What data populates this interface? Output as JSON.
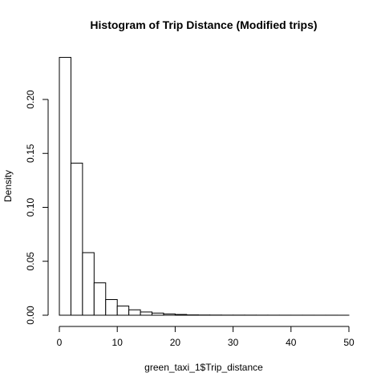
{
  "chart_data": {
    "type": "bar",
    "title": "Histogram of Trip Distance (Modified trips)",
    "xlabel": "green_taxi_1$Trip_distance",
    "ylabel": "Density",
    "xlim": [
      0,
      50
    ],
    "ylim": [
      0,
      0.24
    ],
    "bin_width": 2,
    "bins": [
      {
        "x0": 0,
        "x1": 2,
        "density": 0.239
      },
      {
        "x0": 2,
        "x1": 4,
        "density": 0.141
      },
      {
        "x0": 4,
        "x1": 6,
        "density": 0.058
      },
      {
        "x0": 6,
        "x1": 8,
        "density": 0.03
      },
      {
        "x0": 8,
        "x1": 10,
        "density": 0.0145
      },
      {
        "x0": 10,
        "x1": 12,
        "density": 0.0085
      },
      {
        "x0": 12,
        "x1": 14,
        "density": 0.005
      },
      {
        "x0": 14,
        "x1": 16,
        "density": 0.003
      },
      {
        "x0": 16,
        "x1": 18,
        "density": 0.002
      },
      {
        "x0": 18,
        "x1": 20,
        "density": 0.0012
      },
      {
        "x0": 20,
        "x1": 22,
        "density": 0.0007
      },
      {
        "x0": 22,
        "x1": 24,
        "density": 0.0003
      },
      {
        "x0": 24,
        "x1": 26,
        "density": 0.0002
      },
      {
        "x0": 26,
        "x1": 28,
        "density": 0.00015
      },
      {
        "x0": 28,
        "x1": 30,
        "density": 0.0001
      },
      {
        "x0": 30,
        "x1": 32,
        "density": 0.0001
      },
      {
        "x0": 32,
        "x1": 34,
        "density": 8e-05
      },
      {
        "x0": 34,
        "x1": 36,
        "density": 6e-05
      },
      {
        "x0": 36,
        "x1": 38,
        "density": 5e-05
      },
      {
        "x0": 38,
        "x1": 40,
        "density": 4e-05
      },
      {
        "x0": 40,
        "x1": 42,
        "density": 3e-05
      },
      {
        "x0": 42,
        "x1": 44,
        "density": 3e-05
      },
      {
        "x0": 44,
        "x1": 46,
        "density": 2e-05
      },
      {
        "x0": 46,
        "x1": 48,
        "density": 2e-05
      },
      {
        "x0": 48,
        "x1": 50,
        "density": 1e-05
      }
    ],
    "x_ticks": [
      0,
      10,
      20,
      30,
      40,
      50
    ],
    "y_ticks": [
      0.0,
      0.05,
      0.1,
      0.15,
      0.2
    ],
    "x_tick_labels": [
      "0",
      "10",
      "20",
      "30",
      "40",
      "50"
    ],
    "y_tick_labels": [
      "0.00",
      "0.05",
      "0.10",
      "0.15",
      "0.20"
    ],
    "grid": false,
    "legend": "none"
  }
}
